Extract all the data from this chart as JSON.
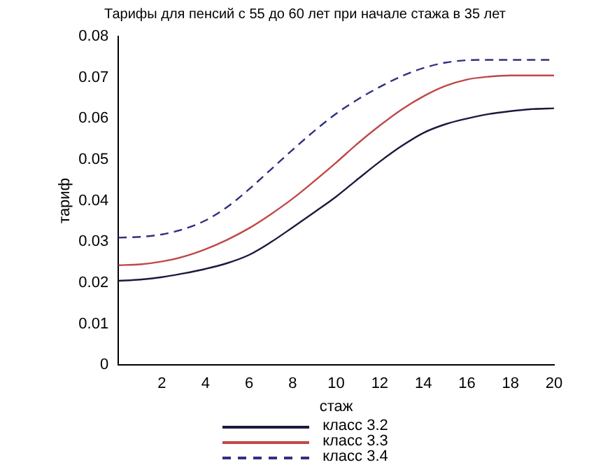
{
  "chart_data": {
    "type": "line",
    "title": "Тарифы для пенсий с 55 до 60 лет при начале стажа в 35 лет",
    "xlabel": "стаж",
    "ylabel": "тариф",
    "x": [
      0,
      1,
      2,
      3,
      4,
      5,
      6,
      7,
      8,
      9,
      10,
      11,
      12,
      13,
      14,
      15,
      16,
      17,
      18,
      19,
      20
    ],
    "xlim": [
      0,
      20
    ],
    "xticks": [
      2,
      4,
      6,
      8,
      10,
      12,
      14,
      16,
      18,
      20
    ],
    "ylim": [
      0,
      0.08
    ],
    "yticks": [
      0,
      0.01,
      0.02,
      0.03,
      0.04,
      0.05,
      0.06,
      0.07,
      0.08
    ],
    "grid": false,
    "legend": "bottom",
    "marker": "none",
    "series": [
      {
        "name": "класс 3.2",
        "color": "#1a1a40",
        "line_style": "solid",
        "values": [
          0.0205,
          0.0208,
          0.0214,
          0.0223,
          0.0234,
          0.0248,
          0.0268,
          0.0299,
          0.0335,
          0.0372,
          0.041,
          0.0453,
          0.0495,
          0.0533,
          0.0565,
          0.0586,
          0.06,
          0.0611,
          0.0618,
          0.0623,
          0.0625
        ]
      },
      {
        "name": "класс 3.3",
        "color": "#c04848",
        "line_style": "solid",
        "values": [
          0.0243,
          0.0245,
          0.0252,
          0.0264,
          0.0282,
          0.0305,
          0.0333,
          0.0367,
          0.0405,
          0.0448,
          0.0493,
          0.054,
          0.0583,
          0.0622,
          0.0654,
          0.0679,
          0.0695,
          0.0702,
          0.0705,
          0.0705,
          0.0705
        ]
      },
      {
        "name": "класс 3.4",
        "color": "#303080",
        "line_style": "dashed",
        "values": [
          0.031,
          0.0312,
          0.0318,
          0.0331,
          0.0352,
          0.0385,
          0.0428,
          0.0476,
          0.0524,
          0.057,
          0.0612,
          0.0647,
          0.0677,
          0.0703,
          0.0723,
          0.0736,
          0.0742,
          0.0743,
          0.0743,
          0.0743,
          0.0743
        ]
      }
    ]
  }
}
